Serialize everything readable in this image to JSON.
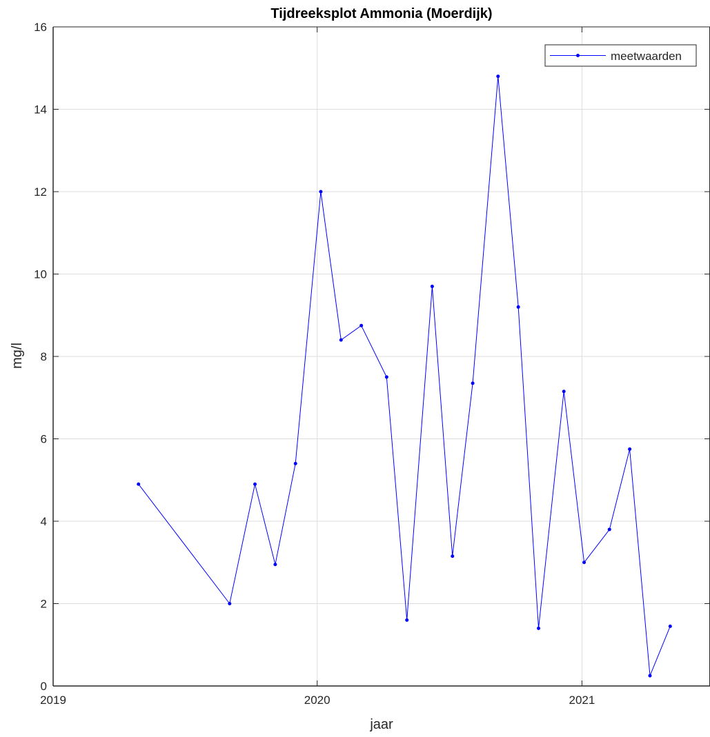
{
  "chart_data": {
    "type": "line",
    "title": "Tijdreeksplot Ammonia (Moerdijk)",
    "xlabel": "jaar",
    "ylabel": "mg/l",
    "xlim": [
      "2019-01-01",
      "2021-06-27"
    ],
    "ylim": [
      0,
      16
    ],
    "xticks": [
      "2019",
      "2020",
      "2021"
    ],
    "yticks": [
      0,
      2,
      4,
      6,
      8,
      10,
      12,
      14,
      16
    ],
    "grid": true,
    "legend_position": "top-right",
    "series": [
      {
        "name": "meetwaarden",
        "color": "#0000ff",
        "marker": "dot",
        "points": [
          {
            "x": "2019-04-29",
            "y": 4.9
          },
          {
            "x": "2019-09-02",
            "y": 2.0
          },
          {
            "x": "2019-10-07",
            "y": 4.9
          },
          {
            "x": "2019-11-04",
            "y": 2.95
          },
          {
            "x": "2019-12-02",
            "y": 5.4
          },
          {
            "x": "2020-01-06",
            "y": 12.0
          },
          {
            "x": "2020-02-03",
            "y": 8.4
          },
          {
            "x": "2020-03-02",
            "y": 8.75
          },
          {
            "x": "2020-04-06",
            "y": 7.5
          },
          {
            "x": "2020-05-04",
            "y": 1.6
          },
          {
            "x": "2020-06-08",
            "y": 9.7
          },
          {
            "x": "2020-07-06",
            "y": 3.15
          },
          {
            "x": "2020-08-03",
            "y": 7.35
          },
          {
            "x": "2020-09-07",
            "y": 14.8
          },
          {
            "x": "2020-10-05",
            "y": 9.2
          },
          {
            "x": "2020-11-02",
            "y": 1.4
          },
          {
            "x": "2020-12-07",
            "y": 7.15
          },
          {
            "x": "2021-01-04",
            "y": 3.0
          },
          {
            "x": "2021-02-08",
            "y": 3.8
          },
          {
            "x": "2021-03-08",
            "y": 5.75
          },
          {
            "x": "2021-04-05",
            "y": 0.25
          },
          {
            "x": "2021-05-03",
            "y": 1.45
          }
        ]
      }
    ]
  }
}
